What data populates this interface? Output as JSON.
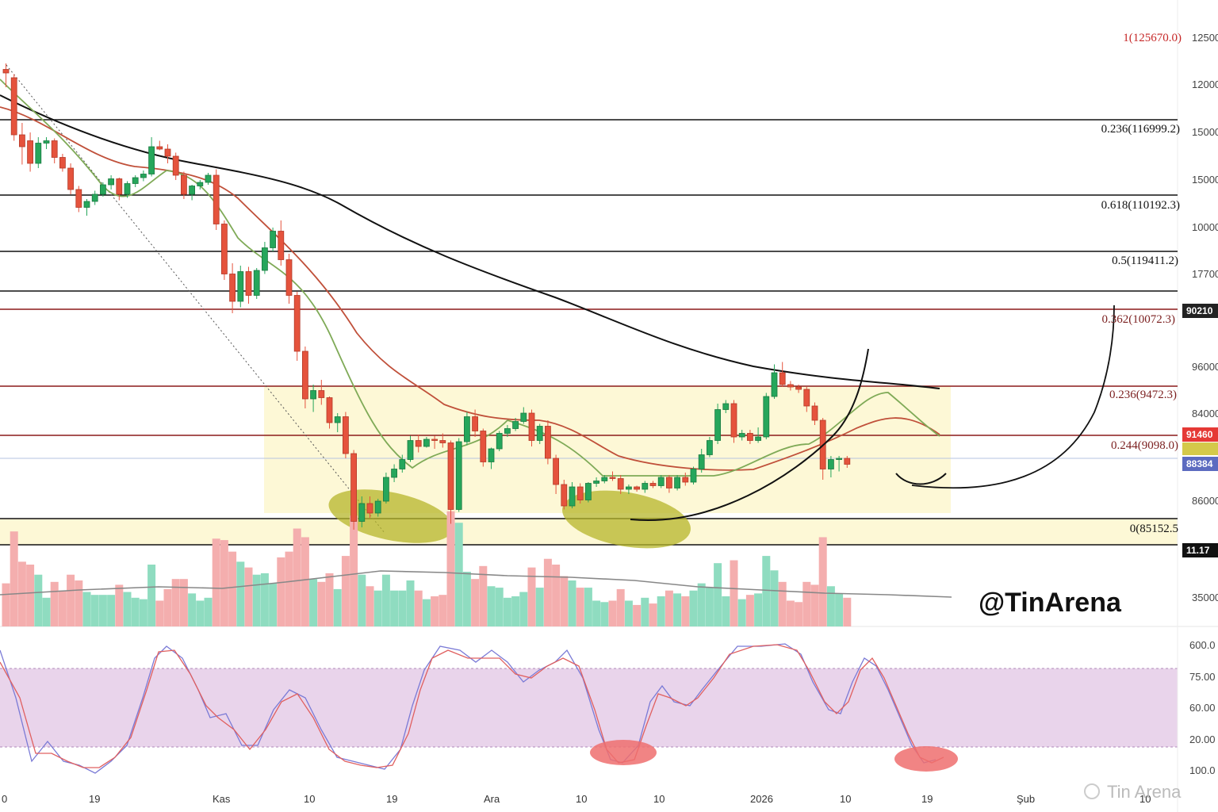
{
  "chart_data": {
    "type": "candlestick",
    "watermark": "@TinArena",
    "footer_mark": "Tin Arena",
    "fib_levels": [
      {
        "label": "1(125670.0)",
        "value": 125670.0,
        "color": "#c62828"
      },
      {
        "label": "0.236(116999.2)",
        "value": 116999.2,
        "color": "#111111"
      },
      {
        "label": "0.618(110192.3)",
        "value": 110192.3,
        "color": "#111111"
      },
      {
        "label": "0.5(119411.2)",
        "value": 119411.2,
        "color": "#111111"
      },
      {
        "label": "0.362(10072.3)",
        "value": 10072.3,
        "color": "#7b1f1f"
      },
      {
        "label": "0.236(9472.3)",
        "value": 9472.3,
        "color": "#7b1f1f"
      },
      {
        "label": "0.244(9098.0)",
        "value": 9098.0,
        "color": "#7b1f1f"
      },
      {
        "label": "0(85152.5",
        "value": 85152.5,
        "color": "#111111"
      }
    ],
    "price_axis": [
      "12500",
      "12000",
      "15000",
      "15000",
      "10000",
      "17700",
      "96000",
      "84000",
      "86000",
      "35000"
    ],
    "price_tags": [
      {
        "text": "90210",
        "color": "#222222"
      },
      {
        "text": "91460",
        "color": "#e53935"
      },
      {
        "text": "88384",
        "color": "#5c6bc0"
      },
      {
        "text": "11.17",
        "color": "#111111"
      }
    ],
    "oscillator_axis": [
      "600.0",
      "75.00",
      "60.00",
      "20.00",
      "100.0"
    ],
    "x_labels": [
      "0",
      "19",
      "Kas",
      "10",
      "19",
      "Ara",
      "10",
      "10",
      "2026",
      "10",
      "19",
      "Şub",
      "10"
    ],
    "candles": [
      [
        122500,
        123000,
        121000,
        122200
      ],
      [
        121800,
        122100,
        116500,
        117000
      ],
      [
        117000,
        118000,
        114500,
        116000
      ],
      [
        116500,
        117200,
        113900,
        114600
      ],
      [
        114600,
        116800,
        114200,
        116300
      ],
      [
        116300,
        116800,
        115800,
        116500
      ],
      [
        116500,
        116700,
        114600,
        115100
      ],
      [
        115100,
        115400,
        113900,
        114200
      ],
      [
        114200,
        114600,
        112000,
        112400
      ],
      [
        112400,
        112700,
        110500,
        110900
      ],
      [
        110900,
        111600,
        110200,
        111400
      ],
      [
        111400,
        112300,
        111100,
        112000
      ],
      [
        112000,
        113000,
        111800,
        112800
      ],
      [
        112800,
        113600,
        112400,
        113300
      ],
      [
        113300,
        113400,
        111500,
        112000
      ],
      [
        112000,
        113100,
        111700,
        112900
      ],
      [
        112900,
        113600,
        112600,
        113400
      ],
      [
        113400,
        114000,
        113100,
        113700
      ],
      [
        113700,
        116800,
        113500,
        116000
      ],
      [
        116000,
        116500,
        115700,
        115800
      ],
      [
        115800,
        116200,
        114600,
        115200
      ],
      [
        115200,
        115500,
        113200,
        113600
      ],
      [
        113600,
        113900,
        111600,
        112000
      ],
      [
        112000,
        112800,
        111500,
        112700
      ],
      [
        112700,
        113200,
        112400,
        113000
      ],
      [
        113000,
        113800,
        112800,
        113600
      ],
      [
        113600,
        114100,
        109000,
        109500
      ],
      [
        109500,
        109800,
        104800,
        105300
      ],
      [
        105300,
        106200,
        102000,
        103000
      ],
      [
        103000,
        106000,
        102500,
        105500
      ],
      [
        105500,
        105900,
        102800,
        103500
      ],
      [
        103500,
        105800,
        103200,
        105600
      ],
      [
        105600,
        108000,
        105300,
        107500
      ],
      [
        107500,
        109200,
        107200,
        108900
      ],
      [
        108900,
        109800,
        106000,
        106500
      ],
      [
        106500,
        107000,
        102800,
        103500
      ],
      [
        103500,
        103800,
        98000,
        98800
      ],
      [
        98800,
        99200,
        94000,
        94800
      ],
      [
        94800,
        96000,
        93700,
        95500
      ],
      [
        95500,
        96400,
        94300,
        94900
      ],
      [
        94900,
        95000,
        92300,
        92800
      ],
      [
        92800,
        93600,
        92000,
        93300
      ],
      [
        93300,
        93700,
        89800,
        90200
      ],
      [
        90200,
        90500,
        83800,
        84500
      ],
      [
        84500,
        86600,
        84000,
        86000
      ],
      [
        86000,
        86600,
        84800,
        85200
      ],
      [
        85200,
        86400,
        84900,
        86200
      ],
      [
        86200,
        88600,
        86000,
        88200
      ],
      [
        88200,
        89300,
        87800,
        88900
      ],
      [
        88900,
        90100,
        88600,
        89700
      ],
      [
        89700,
        91700,
        89500,
        91300
      ],
      [
        91300,
        91800,
        90300,
        90800
      ],
      [
        90800,
        91600,
        90700,
        91400
      ],
      [
        91400,
        91700,
        90600,
        91300
      ],
      [
        91300,
        91900,
        90700,
        91100
      ],
      [
        91100,
        91300,
        84300,
        85500
      ],
      [
        85500,
        91500,
        85300,
        91200
      ],
      [
        91200,
        93700,
        90900,
        93300
      ],
      [
        93300,
        93900,
        91600,
        92100
      ],
      [
        92100,
        92300,
        89100,
        89500
      ],
      [
        89500,
        90700,
        88900,
        90600
      ],
      [
        90600,
        92100,
        90400,
        91900
      ],
      [
        91900,
        92600,
        91600,
        92300
      ],
      [
        92300,
        93200,
        92100,
        92900
      ],
      [
        92900,
        94100,
        92700,
        93600
      ],
      [
        93600,
        93900,
        90800,
        91300
      ],
      [
        91300,
        92700,
        91000,
        92500
      ],
      [
        92500,
        93000,
        89300,
        89800
      ],
      [
        89800,
        90100,
        86800,
        87600
      ],
      [
        87600,
        88000,
        85500,
        85800
      ],
      [
        85800,
        87800,
        85600,
        87400
      ],
      [
        87400,
        87700,
        86000,
        86300
      ],
      [
        86300,
        87800,
        86100,
        87700
      ],
      [
        87700,
        88200,
        87400,
        87900
      ],
      [
        87900,
        88400,
        87700,
        88200
      ],
      [
        88200,
        88700,
        87900,
        88100
      ],
      [
        88100,
        88400,
        86800,
        87200
      ],
      [
        87200,
        87600,
        86800,
        87400
      ],
      [
        87400,
        87500,
        87000,
        87200
      ],
      [
        87200,
        87900,
        86900,
        87700
      ],
      [
        87700,
        87900,
        87300,
        87500
      ],
      [
        87500,
        88400,
        87300,
        88200
      ],
      [
        88200,
        88400,
        86900,
        87300
      ],
      [
        87300,
        88400,
        87100,
        88200
      ],
      [
        88200,
        88600,
        87500,
        87800
      ],
      [
        87800,
        89100,
        87600,
        88900
      ],
      [
        88900,
        90600,
        88600,
        90100
      ],
      [
        90100,
        91600,
        89900,
        91300
      ],
      [
        91300,
        94400,
        91000,
        93900
      ],
      [
        93900,
        94700,
        93600,
        94400
      ],
      [
        94400,
        94700,
        91100,
        91600
      ],
      [
        91600,
        92200,
        91300,
        91900
      ],
      [
        91900,
        92200,
        91000,
        91300
      ],
      [
        91300,
        92400,
        91100,
        91600
      ],
      [
        91600,
        95300,
        91400,
        95000
      ],
      [
        95000,
        97700,
        94800,
        97000
      ],
      [
        97000,
        97900,
        95800,
        96000
      ],
      [
        96000,
        96300,
        95500,
        95800
      ],
      [
        95800,
        96000,
        95300,
        95600
      ],
      [
        95600,
        95800,
        93700,
        94200
      ],
      [
        94200,
        94500,
        92600,
        93000
      ],
      [
        93000,
        93200,
        88000,
        88900
      ],
      [
        88900,
        90000,
        88200,
        89700
      ],
      [
        89700,
        90000,
        88700,
        89800
      ],
      [
        89800,
        90000,
        89000,
        89300
      ]
    ]
  }
}
